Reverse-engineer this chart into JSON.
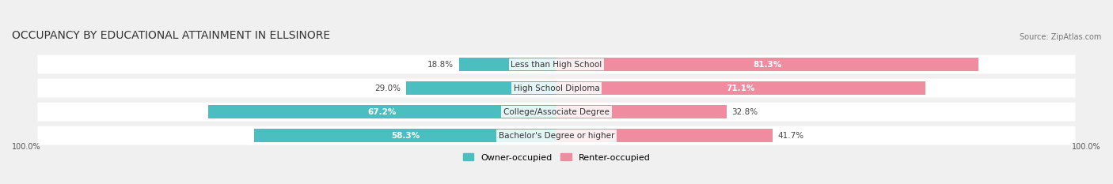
{
  "title": "OCCUPANCY BY EDUCATIONAL ATTAINMENT IN ELLSINORE",
  "source": "Source: ZipAtlas.com",
  "categories": [
    "Less than High School",
    "High School Diploma",
    "College/Associate Degree",
    "Bachelor's Degree or higher"
  ],
  "owner_values": [
    18.8,
    29.0,
    67.2,
    58.3
  ],
  "renter_values": [
    81.3,
    71.1,
    32.8,
    41.7
  ],
  "owner_color": "#4bbfbf",
  "renter_color": "#f08ca0",
  "background_color": "#f0f0f0",
  "bar_background": "#ffffff",
  "bar_height": 0.55,
  "title_fontsize": 10,
  "label_fontsize": 7.5,
  "tick_fontsize": 7,
  "legend_fontsize": 8,
  "source_fontsize": 7,
  "axis_label_left": "100.0%",
  "axis_label_right": "100.0%"
}
